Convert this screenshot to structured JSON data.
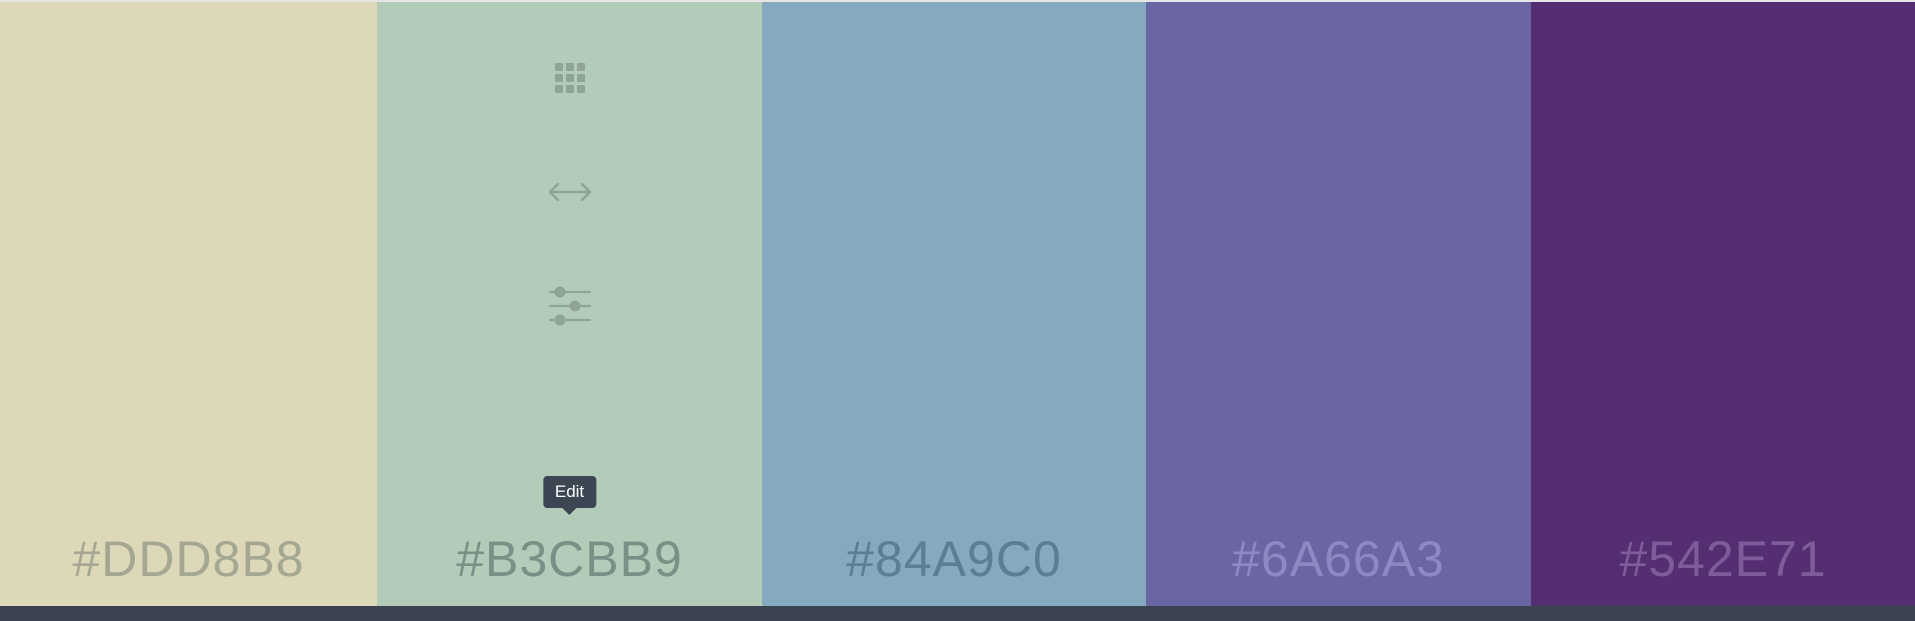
{
  "palette": {
    "swatches": [
      {
        "hex": "#DDD8B8",
        "label_color": "#a6a792"
      },
      {
        "hex": "#B3CBB9",
        "label_color": "#7a8f86"
      },
      {
        "hex": "#84A9C0",
        "label_color": "#5d7d93"
      },
      {
        "hex": "#6A66A3",
        "label_color": "#8f88c2"
      },
      {
        "hex": "#542E71",
        "label_color": "#7e5c99"
      }
    ]
  },
  "tools": {
    "icons": [
      "grid-icon",
      "arrows-horizontal-icon",
      "sliders-icon"
    ],
    "icon_color": "#8fa396"
  },
  "tooltip": {
    "label": "Edit"
  },
  "colors": {
    "bottom_bar": "#3b4350",
    "tooltip_bg": "#3c4552"
  }
}
